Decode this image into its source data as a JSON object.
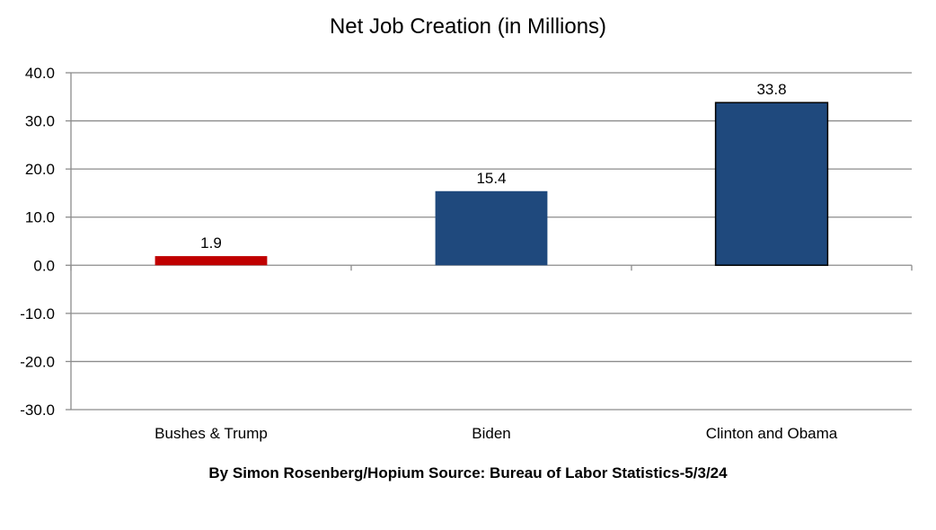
{
  "chart_data": {
    "type": "bar",
    "title": "Net Job Creation (in Millions)",
    "footer": "By Simon Rosenberg/Hopium Source: Bureau of Labor Statistics-5/3/24",
    "categories": [
      "Bushes & Trump",
      "Biden",
      "Clinton and Obama"
    ],
    "values": [
      1.9,
      15.4,
      33.8
    ],
    "value_labels": [
      "1.9",
      "15.4",
      "33.8"
    ],
    "bar_colors": [
      "#c00000",
      "#1f497d",
      "#1f497d"
    ],
    "ylim": [
      -30,
      40
    ],
    "yticks": [
      40,
      30,
      20,
      10,
      0,
      -10,
      -20,
      -30
    ],
    "ytick_labels": [
      "40.0",
      "30.0",
      "20.0",
      "10.0",
      "0.0",
      "-10.0",
      "-20.0",
      "-30.0"
    ],
    "grid": true,
    "xlabel": "",
    "ylabel": ""
  }
}
